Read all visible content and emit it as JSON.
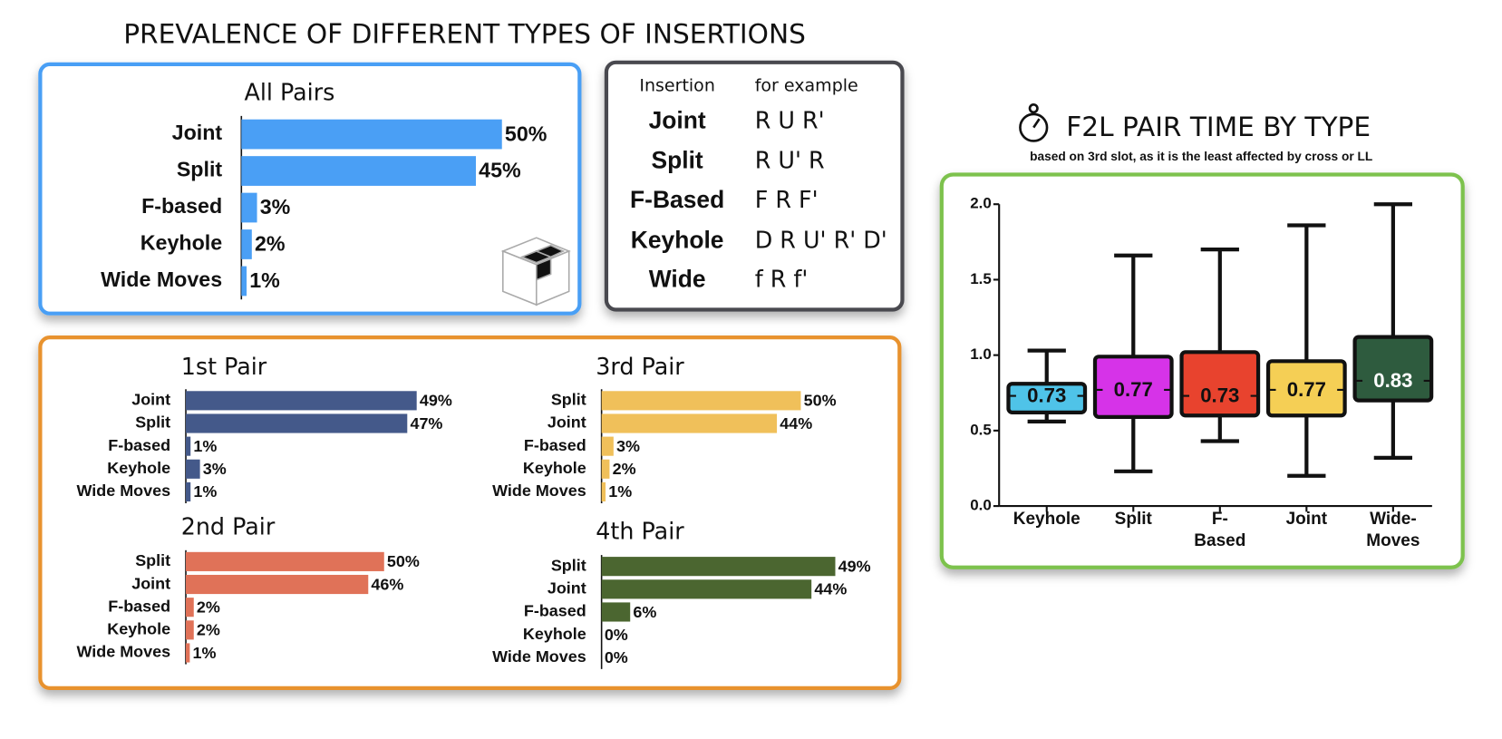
{
  "title": "PREVALENCE OF DIFFERENT TYPES OF INSERTIONS",
  "table": {
    "header": [
      "Insertion",
      "for example"
    ],
    "rows": [
      [
        "Joint",
        "R U R'"
      ],
      [
        "Split",
        "R U' R"
      ],
      [
        "F-Based",
        "F R F'"
      ],
      [
        "Keyhole",
        "D R U' R' D'"
      ],
      [
        "Wide",
        "f R f'"
      ]
    ]
  },
  "chart_data": [
    {
      "type": "bar",
      "orientation": "horizontal",
      "title": "All Pairs",
      "color": "#4a9ff5",
      "categories": [
        "Joint",
        "Split",
        "F-based",
        "Keyhole",
        "Wide Moves"
      ],
      "values": [
        50,
        45,
        3,
        2,
        1
      ],
      "value_labels": [
        "50%",
        "45%",
        "3%",
        "2%",
        "1%"
      ]
    },
    {
      "type": "bar",
      "orientation": "horizontal",
      "title": "1st Pair",
      "color": "#44598a",
      "categories": [
        "Joint",
        "Split",
        "F-based",
        "Keyhole",
        "Wide Moves"
      ],
      "values": [
        49,
        47,
        1,
        3,
        1
      ],
      "value_labels": [
        "49%",
        "47%",
        "1%",
        "3%",
        "1%"
      ]
    },
    {
      "type": "bar",
      "orientation": "horizontal",
      "title": "2nd Pair",
      "color": "#e07258",
      "categories": [
        "Split",
        "Joint",
        "F-based",
        "Keyhole",
        "Wide Moves"
      ],
      "values": [
        50,
        46,
        2,
        2,
        1
      ],
      "value_labels": [
        "50%",
        "46%",
        "2%",
        "2%",
        "1%"
      ]
    },
    {
      "type": "bar",
      "orientation": "horizontal",
      "title": "3rd Pair",
      "color": "#f0c05a",
      "categories": [
        "Split",
        "Joint",
        "F-based",
        "Keyhole",
        "Wide Moves"
      ],
      "values": [
        50,
        44,
        3,
        2,
        1
      ],
      "value_labels": [
        "50%",
        "44%",
        "3%",
        "2%",
        "1%"
      ]
    },
    {
      "type": "bar",
      "orientation": "horizontal",
      "title": "4th Pair",
      "color": "#4b6630",
      "categories": [
        "Split",
        "Joint",
        "F-based",
        "Keyhole",
        "Wide Moves"
      ],
      "values": [
        49,
        44,
        6,
        0,
        0
      ],
      "value_labels": [
        "49%",
        "44%",
        "6%",
        "0%",
        "0%"
      ]
    },
    {
      "type": "box",
      "title": "F2L PAIR TIME BY TYPE",
      "subtitle": "based on 3rd slot, as it is the least affected by cross or LL",
      "categories": [
        "Keyhole",
        "Split",
        "F-Based",
        "Joint",
        "Wide-Moves"
      ],
      "boxes": [
        {
          "min": 0.56,
          "q1": 0.62,
          "median": 0.73,
          "q3": 0.81,
          "max": 1.03,
          "color": "#4fc3e8"
        },
        {
          "min": 0.23,
          "q1": 0.59,
          "median": 0.77,
          "q3": 0.99,
          "max": 1.66,
          "color": "#d633e8"
        },
        {
          "min": 0.43,
          "q1": 0.6,
          "median": 0.73,
          "q3": 1.02,
          "max": 1.7,
          "color": "#e8432e"
        },
        {
          "min": 0.2,
          "q1": 0.6,
          "median": 0.77,
          "q3": 0.96,
          "max": 1.86,
          "color": "#f5cf55"
        },
        {
          "min": 0.32,
          "q1": 0.7,
          "median": 0.83,
          "q3": 1.12,
          "max": 2.0,
          "color": "#2e5b3e"
        }
      ],
      "ylim": [
        0,
        2.0
      ],
      "yticks": [
        {
          "value": 0,
          "label": "0.0"
        },
        0.5,
        {
          "value": 1,
          "label": "1.0"
        },
        1.5,
        {
          "value": 2,
          "label": "2.0"
        }
      ]
    }
  ]
}
